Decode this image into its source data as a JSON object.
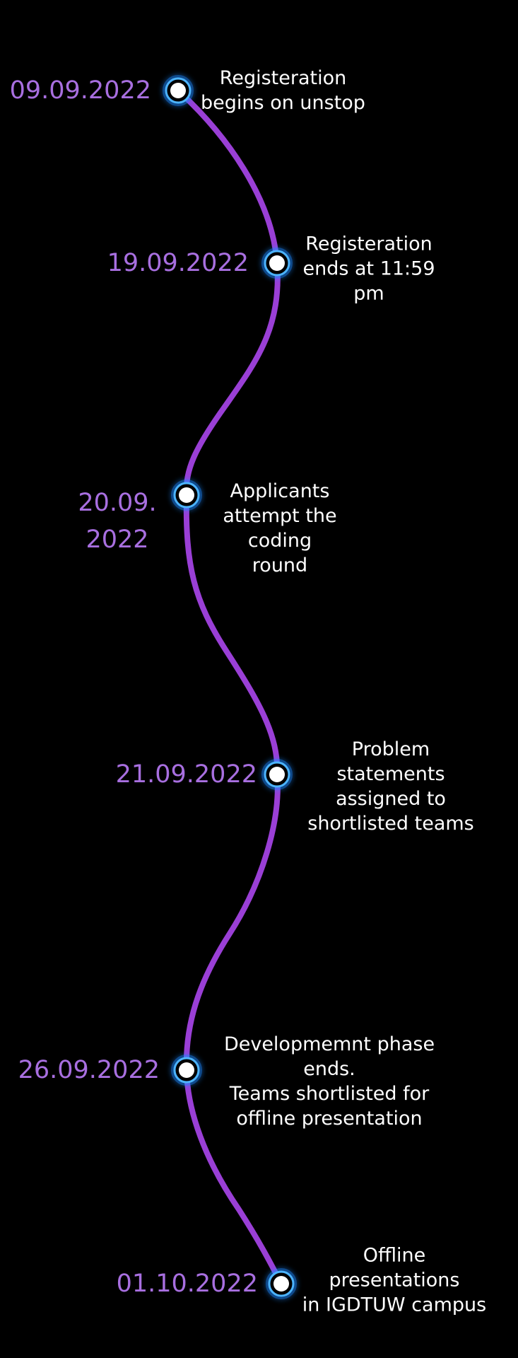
{
  "colors": {
    "background": "#000000",
    "line": "#9a3fd6",
    "date_text": "#a86fe0",
    "node_ring": "#4cb4ff",
    "node_glow": "#1e88ff",
    "node_fill": "#ffffff",
    "desc_text": "#ffffff"
  },
  "events": [
    {
      "date": "09.09.2022",
      "description": "Registeration\nbegins on unstop"
    },
    {
      "date": "19.09.2022",
      "description": "Registeration\nends at 11:59 pm"
    },
    {
      "date": "20.09.\n2022",
      "description": "Applicants\nattempt the\ncoding\nround"
    },
    {
      "date": "21.09.2022",
      "description": "Problem statements\nassigned to\nshortlisted teams"
    },
    {
      "date": "26.09.2022",
      "description": "Developmemnt phase ends.\nTeams shortlisted for\noffline presentation"
    },
    {
      "date": "01.10.2022",
      "description": "Offline presentations\nin IGDTUW campus"
    }
  ]
}
